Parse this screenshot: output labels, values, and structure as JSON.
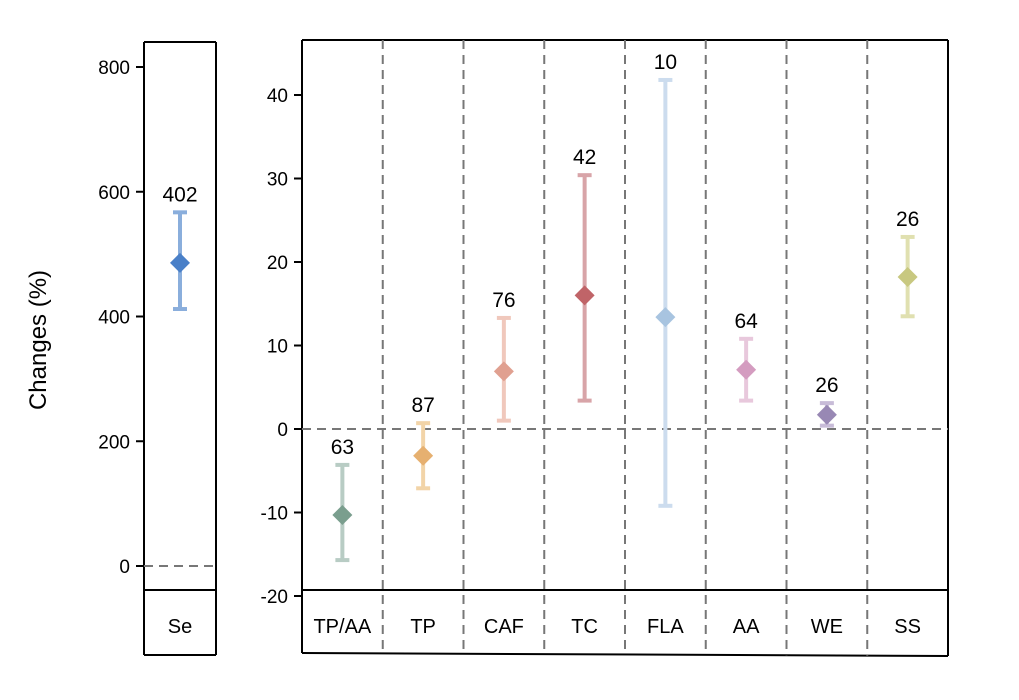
{
  "chart_data": [
    {
      "type": "errorbar",
      "panel": "left",
      "ylabel": "Changes (%)",
      "ylim": [
        0,
        850
      ],
      "yticks": [
        0,
        200,
        400,
        600,
        800
      ],
      "reference_line": 0,
      "categories": [
        "Se"
      ],
      "series": [
        {
          "name": "Se",
          "mean": 486,
          "lower": 412,
          "upper": 567,
          "n": "402",
          "marker_color": "#4a80c8",
          "bar_color": "#8aaedc"
        }
      ]
    },
    {
      "type": "errorbar",
      "panel": "right",
      "ylabel": "",
      "ylim": [
        -20,
        45
      ],
      "yticks": [
        -20,
        -10,
        0,
        10,
        20,
        30,
        40
      ],
      "reference_line": 0,
      "categories": [
        "TP/AA",
        "TP",
        "CAF",
        "TC",
        "FLA",
        "AA",
        "WE",
        "SS"
      ],
      "series": [
        {
          "name": "TP/AA",
          "mean": -10.3,
          "lower": -15.7,
          "upper": -4.3,
          "n": "63",
          "marker_color": "#7a9e8e",
          "bar_color": "#b8ccc4"
        },
        {
          "name": "TP",
          "mean": -3.2,
          "lower": -7.1,
          "upper": 0.7,
          "n": "87",
          "marker_color": "#e6b070",
          "bar_color": "#f2d4a8"
        },
        {
          "name": "CAF",
          "mean": 6.9,
          "lower": 1.0,
          "upper": 13.3,
          "n": "76",
          "marker_color": "#e0a090",
          "bar_color": "#f0c8bc"
        },
        {
          "name": "TC",
          "mean": 16.0,
          "lower": 3.4,
          "upper": 30.4,
          "n": "42",
          "marker_color": "#c06468",
          "bar_color": "#d8a4a8"
        },
        {
          "name": "FLA",
          "mean": 13.4,
          "lower": -9.2,
          "upper": 41.8,
          "n": "10",
          "marker_color": "#a8c4e0",
          "bar_color": "#ccdcee"
        },
        {
          "name": "AA",
          "mean": 7.1,
          "lower": 3.4,
          "upper": 10.8,
          "n": "64",
          "marker_color": "#d49cc0",
          "bar_color": "#e8c8dc"
        },
        {
          "name": "WE",
          "mean": 1.7,
          "lower": 0.4,
          "upper": 3.1,
          "n": "26",
          "marker_color": "#9888b4",
          "bar_color": "#c8bcd8"
        },
        {
          "name": "SS",
          "mean": 18.2,
          "lower": 13.5,
          "upper": 23.0,
          "n": "26",
          "marker_color": "#c8c880",
          "bar_color": "#e0e0b0"
        }
      ]
    }
  ]
}
